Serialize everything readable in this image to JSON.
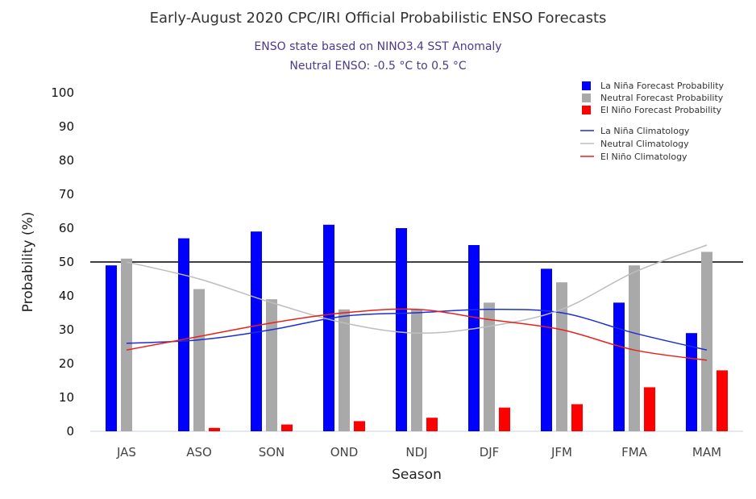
{
  "chart_data": {
    "type": "bar",
    "title": "Early-August 2020 CPC/IRI Official Probabilistic ENSO Forecasts",
    "subtitle": [
      "ENSO state based on NINO3.4 SST Anomaly",
      "Neutral ENSO: -0.5 °C to 0.5 °C"
    ],
    "xlabel": "Season",
    "ylabel": "Probability (%)",
    "ylim": [
      0,
      100
    ],
    "yticks": [
      0,
      10,
      20,
      30,
      40,
      50,
      60,
      70,
      80,
      90,
      100
    ],
    "reference_line": 50,
    "categories": [
      "JAS",
      "ASO",
      "SON",
      "OND",
      "NDJ",
      "DJF",
      "JFM",
      "FMA",
      "MAM"
    ],
    "series": [
      {
        "name": "La Niña Forecast Probability",
        "kind": "bar",
        "color": "#0000ff",
        "values": [
          49,
          57,
          59,
          61,
          60,
          55,
          48,
          38,
          29
        ]
      },
      {
        "name": "Neutral Forecast Probability",
        "kind": "bar",
        "color": "#a9a9a9",
        "values": [
          51,
          42,
          39,
          36,
          36,
          38,
          44,
          49,
          53
        ]
      },
      {
        "name": "El Niño Forecast Probability",
        "kind": "bar",
        "color": "#ff0000",
        "values": [
          0,
          1,
          2,
          3,
          4,
          7,
          8,
          13,
          18
        ]
      },
      {
        "name": "La Niña Climatology",
        "kind": "line",
        "color": "#1a2fd6",
        "values": [
          26,
          27,
          30,
          34,
          35,
          36,
          35,
          29,
          24
        ]
      },
      {
        "name": "Neutral Climatology",
        "kind": "line",
        "color": "#bdbdbd",
        "values": [
          50,
          45,
          38,
          32,
          29,
          31,
          36,
          47,
          55
        ]
      },
      {
        "name": "El Niño Climatology",
        "kind": "line",
        "color": "#e8211b",
        "values": [
          24,
          28,
          32,
          35,
          36,
          33,
          30,
          24,
          21
        ]
      }
    ],
    "legend_position": "top-right",
    "grid": false
  }
}
